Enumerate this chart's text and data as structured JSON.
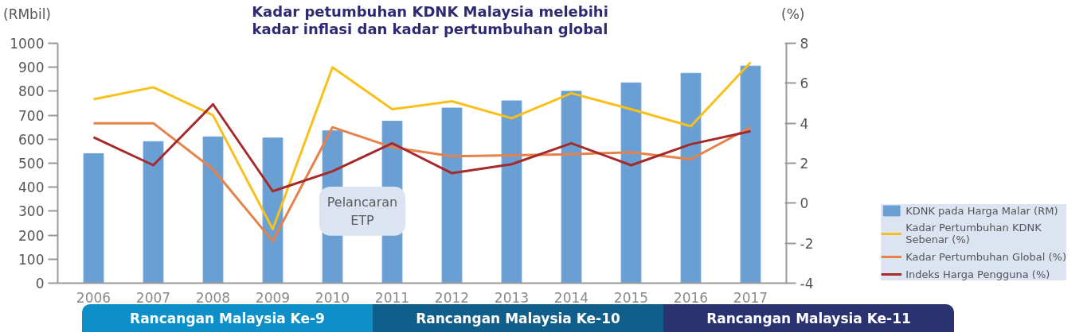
{
  "chart_data": {
    "type": "bar",
    "title": "Kadar petumbuhan KDNK Malaysia melebihi\nkadar inflasi dan kadar pertumbuhan global",
    "ylabel": "(RMbil)",
    "y2label": "(%)",
    "x": [
      2006,
      2007,
      2008,
      2009,
      2010,
      2011,
      2012,
      2013,
      2014,
      2015,
      2016,
      2017
    ],
    "xlim": [
      2005.4,
      2017.6
    ],
    "xticks": [
      2006,
      2007,
      2008,
      2009,
      2010,
      2011,
      2012,
      2013,
      2014,
      2015,
      2016,
      2017
    ],
    "ylim": [
      0,
      1000
    ],
    "yticks": [
      0,
      100,
      200,
      300,
      400,
      500,
      600,
      700,
      800,
      900,
      1000
    ],
    "y2lim": [
      -4,
      8
    ],
    "y2ticks": [
      -4,
      -2,
      0,
      2,
      4,
      6,
      8
    ],
    "series": [
      {
        "name": "KDNK pada Harga Malar (RM)",
        "color": "#6a9fd4",
        "values": [
          540,
          590,
          610,
          605,
          635,
          675,
          730,
          760,
          800,
          835,
          875,
          905
        ]
      },
      {
        "name": "Kadar Pertumbuhan KDNK Sebenar (%)",
        "type": "line",
        "axis": "y2",
        "color": "#f9c01a",
        "values": [
          5.2,
          5.8,
          4.4,
          -1.3,
          6.8,
          4.7,
          5.1,
          4.25,
          5.5,
          4.7,
          3.85,
          7.05
        ]
      },
      {
        "name": "Kadar Pertumbuhan Global (%)",
        "type": "line",
        "axis": "y2",
        "color": "#e8804a",
        "values": [
          4.0,
          4.0,
          1.7,
          -1.9,
          3.8,
          2.8,
          2.35,
          2.4,
          2.45,
          2.55,
          2.2,
          3.8
        ]
      },
      {
        "name": "Indeks Harga Pengguna (%)",
        "type": "line",
        "axis": "y2",
        "color": "#a52a2a",
        "values": [
          3.3,
          1.9,
          4.95,
          0.6,
          1.6,
          3.0,
          1.5,
          1.95,
          3.0,
          1.9,
          2.95,
          3.6
        ]
      }
    ],
    "annotations": [
      "Pelancaran ETP",
      "Rancangan Malaysia Ke-9",
      "Rancangan Malaysia Ke-10",
      "Rancangan Malaysia Ke-11"
    ],
    "legend": "bottom right",
    "grid": false,
    "marker": "none",
    "line_style": "solid"
  }
}
